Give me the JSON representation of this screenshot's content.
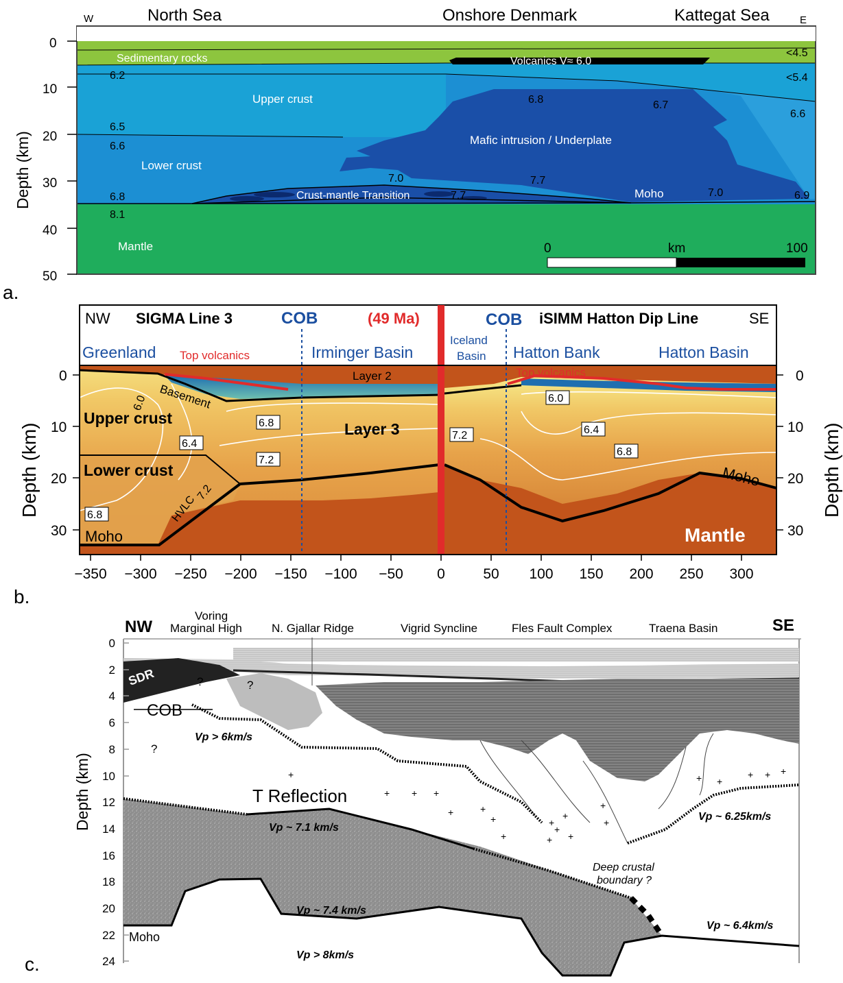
{
  "colors": {
    "sediment": "#8dc53e",
    "sediment_dark": "#78b232",
    "upper_crust": "#1aa2d6",
    "lower_crust": "#1c8fd3",
    "mafic": "#1a4fa8",
    "mafic_dark": "#12358a",
    "mantle_a": "#1fad5c",
    "mantle_b": "#c2541b",
    "crust_b_top": "#f5e27a",
    "crust_b_mid": "#e9a744",
    "cob_blue": "#1b4fa0",
    "volcanic_red": "#e12b2b",
    "grey_lower": "#8c8c8c",
    "grey_seismic": "#6f6f6f"
  },
  "panel_a": {
    "letter": "a.",
    "west_marker": "W",
    "east_marker": "E",
    "region_labels": [
      "North Sea",
      "Onshore Denmark",
      "Kattegat Sea"
    ],
    "y_axis_title": "Depth (km)",
    "y_ticks": [
      "0",
      "10",
      "20",
      "30",
      "40",
      "50"
    ],
    "layer_labels": {
      "sedimentary": "Sedimentary rocks",
      "volcanics": "Volcanics V≈ 6.0",
      "upper_crust": "Upper crust",
      "mafic": "Mafic intrusion / Underplate",
      "lower_crust": "Lower crust",
      "transition": "Crust-mantle Transition",
      "moho": "Moho",
      "mantle": "Mantle"
    },
    "velocities": {
      "v62": "6.2",
      "v65": "6.5",
      "v66": "6.6",
      "v68": "6.8",
      "v81": "8.1",
      "v70a": "7.0",
      "v77a": "7.7",
      "v77b": "7.7",
      "v68b": "6.8",
      "v67": "6.7",
      "v66b": "6.6",
      "v70b": "7.0",
      "v69": "6.9",
      "lt45": "<4.5",
      "lt54": "<5.4"
    },
    "scale_bar": {
      "start": "0",
      "unit": "km",
      "end": "100"
    }
  },
  "panel_b": {
    "letter": "b.",
    "header": {
      "nw": "NW",
      "line_left": "SIGMA Line 3",
      "cob_left": "COB",
      "age": "(49 Ma)",
      "cob_right": "COB",
      "line_right": "iSIMM Hatton Dip Line",
      "se": "SE"
    },
    "region_labels": {
      "greenland": "Greenland",
      "irminger": "Irminger Basin",
      "iceland_1": "Iceland",
      "iceland_2": "Basin",
      "hatton_bank": "Hatton Bank",
      "hatton_basin": "Hatton Basin"
    },
    "top_volcanics": "Top volcanics",
    "layer2": "Layer 2",
    "basement": "Basement",
    "upper_crust": "Upper crust",
    "lower_crust": "Lower crust",
    "layer3": "Layer 3",
    "hvlc": "HVLC",
    "moho": "Moho",
    "mantle": "Mantle",
    "contours": [
      "6.0",
      "6.4",
      "6.8",
      "7.2",
      "6.8",
      "7.2",
      "6.8",
      "7.2",
      "6.0",
      "6.4",
      "6.8"
    ],
    "y_axis_title": "Depth (km)",
    "y_ticks": [
      "0",
      "10",
      "20",
      "30"
    ],
    "x_ticks": [
      "−350",
      "−300",
      "−250",
      "−200",
      "−150",
      "−100",
      "−50",
      "0",
      "50",
      "100",
      "150",
      "200",
      "250",
      "300"
    ]
  },
  "panel_c": {
    "letter": "c.",
    "nw": "NW",
    "se": "SE",
    "regions": [
      "Voring",
      "Marginal High",
      "N. Gjallar Ridge",
      "Vigrid Syncline",
      "Fles Fault Complex",
      "Traena Basin"
    ],
    "y_axis_title": "Depth (km)",
    "y_ticks": [
      "0",
      "2",
      "4",
      "6",
      "8",
      "10",
      "12",
      "14",
      "16",
      "18",
      "20",
      "22",
      "24"
    ],
    "sdr": "SDR",
    "cob": "COB",
    "question": "?",
    "vp6": "Vp > 6km/s",
    "t_reflection": "T Reflection",
    "vp71": "Vp ~ 7.1 km/s",
    "vp625": "Vp ~ 6.25km/s",
    "deep_boundary_1": "Deep crustal",
    "deep_boundary_2": "boundary ?",
    "vp74": "Vp ~ 7.4 km/s",
    "vp64": "Vp ~ 6.4km/s",
    "moho": "Moho",
    "vp8": "Vp > 8km/s"
  }
}
